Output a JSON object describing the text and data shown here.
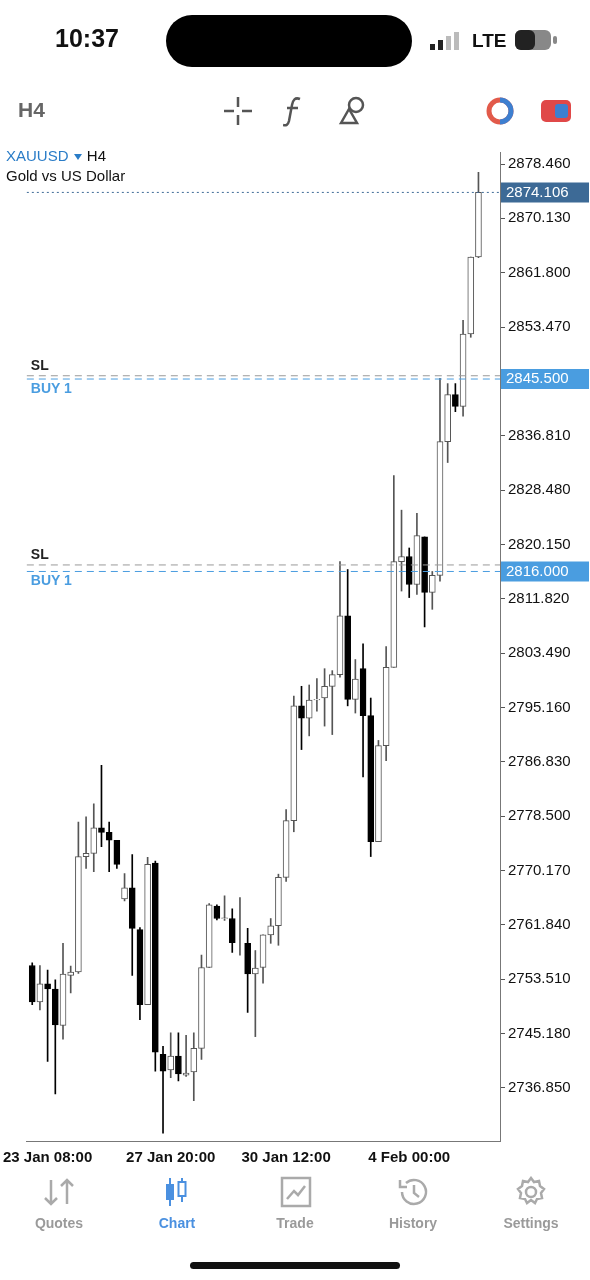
{
  "chart_data": {
    "type": "candlestick",
    "title": "XAUUSD",
    "subtitle": "Gold vs US Dollar",
    "categories": [
      null,
      null,
      "23 Jan 08:00",
      null,
      null,
      null,
      null,
      null,
      null,
      null,
      null,
      null,
      null,
      null,
      null,
      null,
      null,
      null,
      "27 Jan 20:00",
      null,
      null,
      null,
      null,
      null,
      null,
      null,
      null,
      null,
      null,
      null,
      null,
      null,
      null,
      "30 Jan 12:00",
      null,
      null,
      null,
      null,
      null,
      null,
      null,
      null,
      null,
      null,
      null,
      null,
      null,
      null,
      null,
      "4 Feb 00:00",
      null,
      null,
      null,
      null,
      null,
      null,
      null,
      null,
      null
    ],
    "ohlc": [
      [
        2755.6,
        2756.0,
        2749.6,
        2750.0
      ],
      [
        2750.0,
        2755.6,
        2748.8,
        2752.8
      ],
      [
        2752.8,
        2754.9,
        2740.9,
        2752.0
      ],
      [
        2752.0,
        2753.4,
        2735.9,
        2746.5
      ],
      [
        2746.4,
        2759.0,
        2744.3,
        2754.3
      ],
      [
        2754.1,
        2755.5,
        2751.4,
        2754.6
      ],
      [
        2754.6,
        2777.6,
        2754.4,
        2772.3
      ],
      [
        2772.3,
        2778.4,
        2770.5,
        2772.8
      ],
      [
        2772.8,
        2780.4,
        2770.0,
        2776.7
      ],
      [
        2776.7,
        2786.3,
        2773.8,
        2776.0
      ],
      [
        2776.0,
        2777.6,
        2770.0,
        2774.8
      ],
      [
        2774.8,
        2774.8,
        2770.5,
        2771.1
      ],
      [
        2765.8,
        2769.7,
        2765.5,
        2767.5
      ],
      [
        2767.5,
        2772.6,
        2754.1,
        2761.3
      ],
      [
        2761.1,
        2761.4,
        2747.3,
        2749.6
      ],
      [
        2749.6,
        2772.2,
        2749.6,
        2771.1
      ],
      [
        2771.3,
        2771.6,
        2739.4,
        2742.3
      ],
      [
        2742.0,
        2743.2,
        2729.9,
        2739.4
      ],
      [
        2739.6,
        2745.3,
        2738.4,
        2741.7
      ],
      [
        2741.7,
        2745.3,
        2737.9,
        2739.0
      ],
      [
        2738.8,
        2744.9,
        2738.6,
        2739.1
      ],
      [
        2739.3,
        2745.3,
        2734.9,
        2742.9
      ],
      [
        2742.9,
        2757.2,
        2741.2,
        2755.3
      ],
      [
        2755.3,
        2765.1,
        2755.3,
        2764.9
      ],
      [
        2764.7,
        2764.9,
        2762.6,
        2762.8
      ],
      [
        2762.8,
        2766.3,
        2762.5,
        2762.9
      ],
      [
        2762.8,
        2764.3,
        2757.6,
        2759.1
      ],
      [
        2759.1,
        2766.0,
        2757.2,
        2759.1
      ],
      [
        2759.0,
        2761.3,
        2748.4,
        2754.3
      ],
      [
        2754.3,
        2757.9,
        2744.7,
        2755.2
      ],
      [
        2755.3,
        2760.3,
        2752.9,
        2760.3
      ],
      [
        2760.3,
        2762.8,
        2759.0,
        2761.7
      ],
      [
        2761.7,
        2769.6,
        2758.7,
        2769.1
      ],
      [
        2769.1,
        2779.5,
        2768.5,
        2777.8
      ],
      [
        2777.8,
        2796.9,
        2776.1,
        2795.4
      ],
      [
        2795.4,
        2798.4,
        2788.7,
        2793.5
      ],
      [
        2793.5,
        2798.6,
        2790.8,
        2796.3
      ],
      [
        2796.3,
        2799.6,
        2794.6,
        2796.4
      ],
      [
        2796.6,
        2801.1,
        2792.3,
        2798.4
      ],
      [
        2798.4,
        2800.8,
        2791.0,
        2800.2
      ],
      [
        2800.2,
        2817.5,
        2799.8,
        2809.2
      ],
      [
        2809.2,
        2816.3,
        2795.4,
        2796.4
      ],
      [
        2796.4,
        2802.5,
        2794.3,
        2799.5
      ],
      [
        2801.1,
        2804.9,
        2784.5,
        2793.9
      ],
      [
        2793.9,
        2796.6,
        2772.3,
        2774.6
      ],
      [
        2774.6,
        2790.1,
        2774.6,
        2789.3
      ],
      [
        2789.3,
        2804.5,
        2787.0,
        2801.3
      ],
      [
        2801.3,
        2830.7,
        2801.3,
        2817.5
      ],
      [
        2817.5,
        2825.4,
        2813.0,
        2818.3
      ],
      [
        2818.3,
        2819.6,
        2812.0,
        2814.0
      ],
      [
        2814.0,
        2824.9,
        2812.5,
        2821.5
      ],
      [
        2821.3,
        2821.3,
        2807.5,
        2812.8
      ],
      [
        2812.8,
        2816.0,
        2810.2,
        2815.4
      ],
      [
        2815.4,
        2845.6,
        2814.5,
        2835.9
      ],
      [
        2835.9,
        2844.8,
        2832.7,
        2843.1
      ],
      [
        2843.1,
        2844.8,
        2840.5,
        2841.3
      ],
      [
        2841.3,
        2854.5,
        2839.8,
        2852.4
      ],
      [
        2852.4,
        2864.2,
        2851.9,
        2864.2
      ],
      [
        2864.2,
        2877.2,
        2864.1,
        2874.106
      ]
    ],
    "ylim": [
      2728.7,
      2880.3
    ],
    "yticks": [
      {
        "value": 2736.85,
        "label": "2736.850"
      },
      {
        "value": 2745.18,
        "label": "2745.180"
      },
      {
        "value": 2753.51,
        "label": "2753.510"
      },
      {
        "value": 2761.84,
        "label": "2761.840"
      },
      {
        "value": 2770.17,
        "label": "2770.170"
      },
      {
        "value": 2778.5,
        "label": "2778.500"
      },
      {
        "value": 2786.83,
        "label": "2786.830"
      },
      {
        "value": 2795.16,
        "label": "2795.160"
      },
      {
        "value": 2803.49,
        "label": "2803.490"
      },
      {
        "value": 2811.82,
        "label": "2811.820"
      },
      {
        "value": 2820.15,
        "label": "2820.150"
      },
      {
        "value": 2828.48,
        "label": "2828.480"
      },
      {
        "value": 2836.81,
        "label": "2836.810"
      },
      {
        "value": 2853.47,
        "label": "2853.470"
      },
      {
        "value": 2861.8,
        "label": "2861.800"
      },
      {
        "value": 2870.13,
        "label": "2870.130"
      },
      {
        "value": 2878.46,
        "label": "2878.460"
      }
    ],
    "ref_lines": [
      {
        "axis": "y",
        "value": 2874.106,
        "label": "2874.106",
        "color": "#3d6a96",
        "line_style": "dotted"
      },
      {
        "axis": "y",
        "value": 2846.0,
        "label": "SL",
        "color": "#999999",
        "line_style": "dashed"
      },
      {
        "axis": "y",
        "value": 2845.5,
        "label": "BUY 1",
        "color": "#4a9de0",
        "line_style": "dashed"
      },
      {
        "axis": "y",
        "value": 2817.0,
        "label": "SL",
        "color": "#999999",
        "line_style": "dashed"
      },
      {
        "axis": "y",
        "value": 2816.0,
        "label": "BUY 1",
        "color": "#4a9de0",
        "line_style": "dashed"
      }
    ],
    "annotations": [
      "10:37",
      "LTE",
      "H4",
      "H4",
      "Quotes",
      "Chart",
      "Trade",
      "History",
      "Settings",
      "2845.500",
      "2816.000"
    ],
    "legend": false
  }
}
